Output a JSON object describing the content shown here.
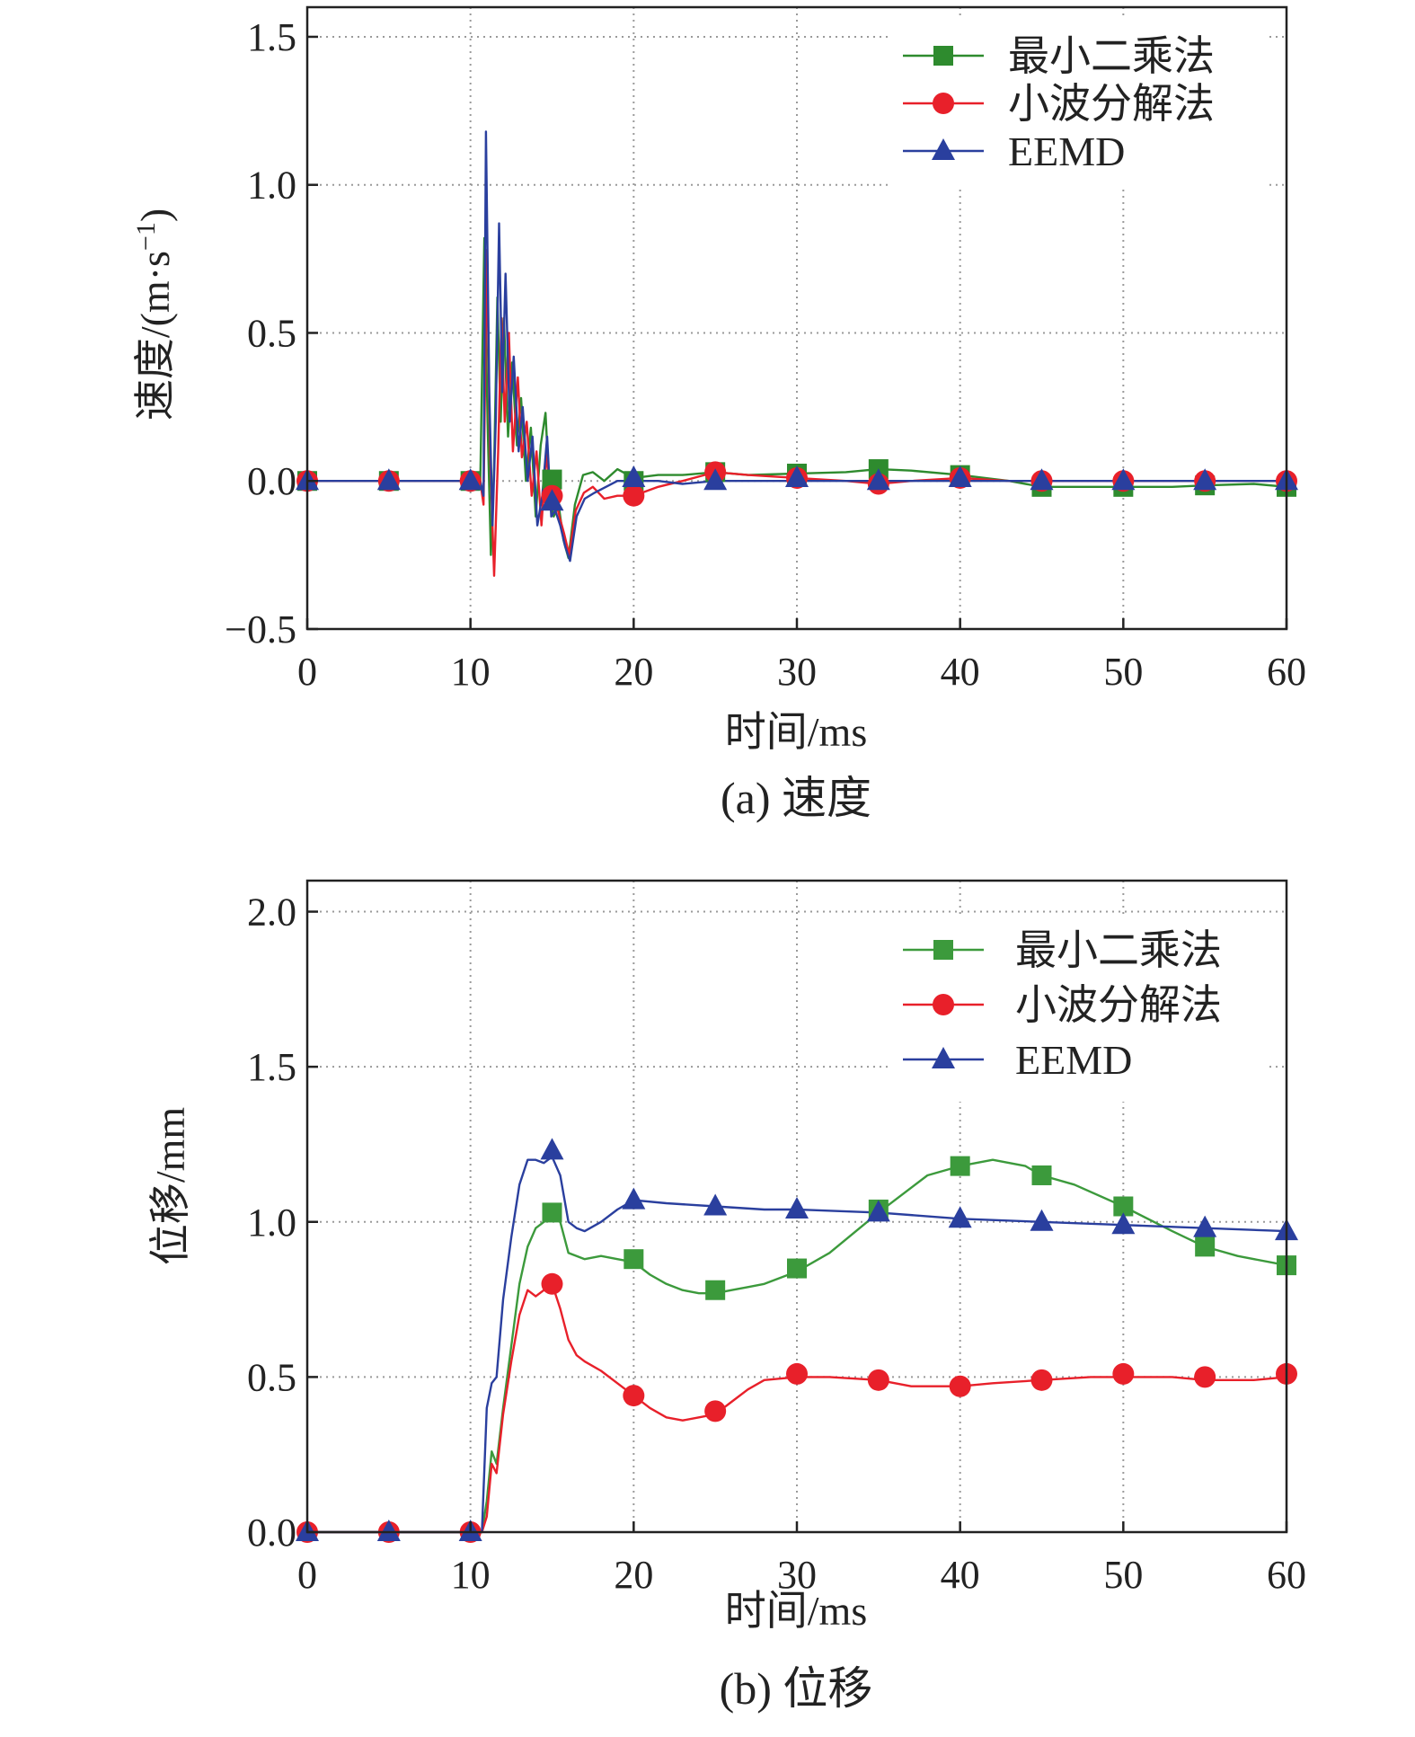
{
  "charts": [
    {
      "caption": "(a) 速度",
      "xlabel": "时间/ms",
      "ylabel": "速度/(m·s",
      "ylabel_exp": "−1",
      "ylabel_close": ")"
    },
    {
      "caption": "(b) 位移",
      "xlabel": "时间/ms",
      "ylabel": "位移/mm"
    }
  ],
  "chart_data": [
    {
      "type": "line",
      "title": "",
      "caption": "(a) 速度",
      "xlabel": "时间/ms",
      "ylabel": "速度/(m·s−1)",
      "xlim": [
        0,
        60
      ],
      "ylim": [
        -0.5,
        1.6
      ],
      "xticks": [
        0,
        10,
        20,
        30,
        40,
        50,
        60
      ],
      "xtick_labels": [
        "0",
        "10",
        "20",
        "30",
        "40",
        "50",
        "60"
      ],
      "yticks": [
        -0.5,
        0,
        0.5,
        1.0,
        1.5
      ],
      "ytick_labels": [
        "−0.5",
        "0.0",
        "0.5",
        "1.0",
        "1.5"
      ],
      "grid": true,
      "legend_position": "top-right",
      "series": [
        {
          "name": "最小二乘法",
          "color": "#2e8b2e",
          "marker": "square",
          "x": [
            0,
            10.6,
            10.85,
            11.05,
            11.25,
            11.45,
            11.65,
            11.85,
            12.05,
            12.3,
            12.55,
            12.85,
            13.1,
            13.4,
            13.7,
            14.0,
            14.3,
            14.6,
            14.85,
            15.1,
            15.4,
            15.7,
            16.0,
            16.4,
            16.9,
            17.5,
            18.2,
            19.0,
            20.0,
            21.5,
            23.0,
            25.0,
            27.0,
            30.0,
            33.0,
            35.0,
            37.0,
            40.0,
            43.0,
            45.0,
            48.0,
            50.0,
            53.0,
            55.0,
            58.0,
            60.0
          ],
          "y": [
            0,
            0,
            0.82,
            0.2,
            -0.25,
            0.05,
            0.62,
            0.2,
            0.55,
            0.15,
            0.4,
            0.12,
            0.28,
            0.0,
            0.18,
            -0.12,
            0.12,
            0.23,
            -0.05,
            -0.12,
            -0.08,
            -0.2,
            -0.26,
            -0.08,
            0.02,
            0.03,
            0.0,
            0.04,
            0.01,
            0.02,
            0.02,
            0.03,
            0.02,
            0.025,
            0.03,
            0.04,
            0.035,
            0.02,
            0.0,
            -0.02,
            -0.02,
            -0.02,
            -0.02,
            -0.015,
            -0.01,
            -0.02
          ],
          "marker_x": [
            0,
            5,
            10,
            15,
            20,
            25,
            30,
            35,
            40,
            45,
            50,
            55,
            60
          ],
          "marker_y": [
            0,
            0,
            0,
            0.005,
            0.0,
            0.03,
            0.025,
            0.04,
            0.02,
            -0.02,
            -0.02,
            -0.015,
            -0.02
          ]
        },
        {
          "name": "小波分解法",
          "color": "#e8202a",
          "marker": "circle",
          "x": [
            0,
            10.6,
            10.8,
            11.0,
            11.2,
            11.45,
            11.7,
            11.9,
            12.1,
            12.35,
            12.6,
            12.9,
            13.15,
            13.45,
            13.75,
            14.05,
            14.35,
            14.65,
            14.9,
            15.15,
            15.45,
            15.75,
            16.05,
            16.45,
            16.95,
            17.5,
            18.2,
            19.0,
            20.0,
            21.5,
            23.0,
            25.0,
            27.0,
            30.0,
            33.0,
            35.0,
            37.0,
            40.0,
            43.0,
            45.0,
            48.0,
            50.0,
            53.0,
            55.0,
            58.0,
            60.0
          ],
          "y": [
            0,
            0,
            -0.08,
            0.78,
            0.1,
            -0.32,
            0.1,
            0.55,
            0.2,
            0.5,
            0.1,
            0.35,
            0.08,
            0.2,
            -0.05,
            0.1,
            -0.15,
            0.1,
            -0.08,
            -0.05,
            -0.12,
            -0.18,
            -0.25,
            -0.1,
            -0.04,
            -0.02,
            -0.06,
            -0.05,
            -0.05,
            -0.02,
            0.0,
            0.03,
            0.02,
            0.01,
            0.0,
            -0.01,
            0.0,
            0.01,
            0.0,
            0.0,
            0.0,
            0.0,
            0.0,
            0.0,
            0.0,
            0.0
          ],
          "marker_x": [
            0,
            5,
            10,
            15,
            20,
            25,
            30,
            35,
            40,
            45,
            50,
            55,
            60
          ],
          "marker_y": [
            0,
            0,
            0,
            -0.05,
            -0.05,
            0.03,
            0.01,
            -0.01,
            0.01,
            0.0,
            0.0,
            0.0,
            0.0
          ]
        },
        {
          "name": "EEMD",
          "color": "#2a3f9e",
          "marker": "triangle",
          "x": [
            0,
            10.6,
            10.8,
            10.95,
            11.15,
            11.35,
            11.55,
            11.75,
            11.95,
            12.15,
            12.4,
            12.65,
            12.95,
            13.2,
            13.5,
            13.8,
            14.1,
            14.4,
            14.7,
            14.95,
            15.2,
            15.5,
            15.8,
            16.1,
            16.5,
            17.0,
            17.6,
            18.3,
            19.0,
            20.0,
            21.5,
            23.0,
            25.0,
            27.0,
            30.0,
            33.0,
            35.0,
            37.0,
            40.0,
            43.0,
            45.0,
            48.0,
            50.0,
            53.0,
            55.0,
            58.0,
            60.0
          ],
          "y": [
            0,
            0,
            -0.05,
            1.18,
            0.3,
            -0.15,
            0.2,
            0.87,
            0.3,
            0.7,
            0.2,
            0.42,
            0.1,
            0.25,
            0.0,
            0.15,
            -0.15,
            -0.05,
            0.15,
            -0.12,
            -0.1,
            -0.15,
            -0.22,
            -0.27,
            -0.12,
            -0.06,
            -0.04,
            -0.02,
            0.0,
            0.0,
            0.0,
            -0.01,
            0.0,
            0.0,
            0.0,
            0.0,
            0.0,
            0.0,
            0.0,
            0.0,
            0.0,
            0.0,
            0.0,
            0.0,
            0.0,
            0.0,
            0.0
          ],
          "marker_x": [
            0,
            5,
            10,
            15,
            20,
            25,
            30,
            35,
            40,
            45,
            50,
            55,
            60
          ],
          "marker_y": [
            0,
            0,
            0,
            -0.07,
            0.01,
            0.0,
            0.01,
            0.0,
            0.01,
            0.0,
            0.0,
            0.0,
            0.0
          ]
        }
      ]
    },
    {
      "type": "line",
      "title": "",
      "caption": "(b) 位移",
      "xlabel": "时间/ms",
      "ylabel": "位移/mm",
      "xlim": [
        0,
        60
      ],
      "ylim": [
        0,
        2.1
      ],
      "xticks": [
        0,
        10,
        20,
        30,
        40,
        50,
        60
      ],
      "xtick_labels": [
        "0",
        "10",
        "20",
        "30",
        "40",
        "50",
        "60"
      ],
      "yticks": [
        0,
        0.5,
        1.0,
        1.5,
        2.0
      ],
      "ytick_labels": [
        "0.0",
        "0.5",
        "1.0",
        "1.5",
        "2.0"
      ],
      "grid": true,
      "legend_position": "top-right",
      "series": [
        {
          "name": "最小二乘法",
          "color": "#3c9a3c",
          "marker": "square",
          "x": [
            0,
            10.7,
            11.0,
            11.3,
            11.6,
            12.0,
            12.5,
            13.0,
            13.5,
            14.0,
            14.5,
            15.0,
            15.5,
            16.0,
            17.0,
            18.0,
            19.0,
            20.0,
            21.0,
            22.0,
            23.0,
            24.0,
            25.0,
            26.0,
            27.0,
            28.0,
            30.0,
            32.0,
            35.0,
            38.0,
            40.0,
            42.0,
            44.0,
            45.0,
            47.0,
            50.0,
            53.0,
            55.0,
            57.0,
            60.0
          ],
          "y": [
            0,
            0,
            0.1,
            0.26,
            0.22,
            0.4,
            0.6,
            0.8,
            0.92,
            0.98,
            1.0,
            1.02,
            1.0,
            0.9,
            0.88,
            0.89,
            0.88,
            0.87,
            0.83,
            0.8,
            0.78,
            0.77,
            0.77,
            0.78,
            0.79,
            0.8,
            0.84,
            0.9,
            1.03,
            1.15,
            1.18,
            1.2,
            1.18,
            1.15,
            1.12,
            1.05,
            0.97,
            0.92,
            0.89,
            0.86
          ],
          "marker_x": [
            15,
            20,
            25,
            30,
            35,
            40,
            45,
            50,
            55,
            60
          ],
          "marker_y": [
            1.03,
            0.88,
            0.78,
            0.85,
            1.04,
            1.18,
            1.15,
            1.05,
            0.92,
            0.86
          ]
        },
        {
          "name": "小波分解法",
          "color": "#e8202a",
          "marker": "circle",
          "x": [
            0,
            10.7,
            11.0,
            11.3,
            11.6,
            12.0,
            12.5,
            13.0,
            13.5,
            14.0,
            14.5,
            15.0,
            15.5,
            16.0,
            16.5,
            17.0,
            18.0,
            19.0,
            20.0,
            21.0,
            22.0,
            23.0,
            24.0,
            25.0,
            26.0,
            27.0,
            28.0,
            30.0,
            32.0,
            35.0,
            37.0,
            40.0,
            42.0,
            45.0,
            48.0,
            50.0,
            53.0,
            55.0,
            58.0,
            60.0
          ],
          "y": [
            0,
            0,
            0.05,
            0.22,
            0.19,
            0.38,
            0.55,
            0.7,
            0.78,
            0.76,
            0.78,
            0.8,
            0.72,
            0.62,
            0.57,
            0.55,
            0.52,
            0.48,
            0.44,
            0.4,
            0.37,
            0.36,
            0.37,
            0.38,
            0.42,
            0.46,
            0.49,
            0.5,
            0.5,
            0.49,
            0.47,
            0.47,
            0.48,
            0.49,
            0.5,
            0.5,
            0.5,
            0.49,
            0.49,
            0.5
          ],
          "marker_x": [
            0,
            5,
            10,
            15,
            20,
            25,
            30,
            35,
            40,
            45,
            50,
            55,
            60
          ],
          "marker_y": [
            0,
            0,
            0,
            0.8,
            0.44,
            0.39,
            0.51,
            0.49,
            0.47,
            0.49,
            0.51,
            0.5,
            0.51
          ]
        },
        {
          "name": "EEMD",
          "color": "#2a3f9e",
          "marker": "triangle",
          "x": [
            0,
            10.7,
            11.0,
            11.3,
            11.6,
            12.0,
            12.5,
            13.0,
            13.5,
            14.0,
            14.5,
            15.0,
            15.5,
            16.0,
            16.5,
            17.0,
            18.0,
            19.0,
            20.0,
            22.0,
            25.0,
            28.0,
            30.0,
            35.0,
            40.0,
            45.0,
            50.0,
            55.0,
            60.0
          ],
          "y": [
            0,
            0,
            0.4,
            0.48,
            0.5,
            0.75,
            0.95,
            1.12,
            1.2,
            1.2,
            1.19,
            1.21,
            1.15,
            1.0,
            0.98,
            0.97,
            1.0,
            1.04,
            1.07,
            1.06,
            1.05,
            1.04,
            1.04,
            1.03,
            1.01,
            1.0,
            0.99,
            0.98,
            0.97
          ],
          "marker_x": [
            0,
            5,
            10,
            15,
            20,
            25,
            30,
            35,
            40,
            45,
            50,
            55,
            60
          ],
          "marker_y": [
            0,
            0,
            0,
            1.23,
            1.07,
            1.05,
            1.04,
            1.03,
            1.01,
            1.0,
            0.99,
            0.98,
            0.97
          ]
        }
      ]
    }
  ]
}
